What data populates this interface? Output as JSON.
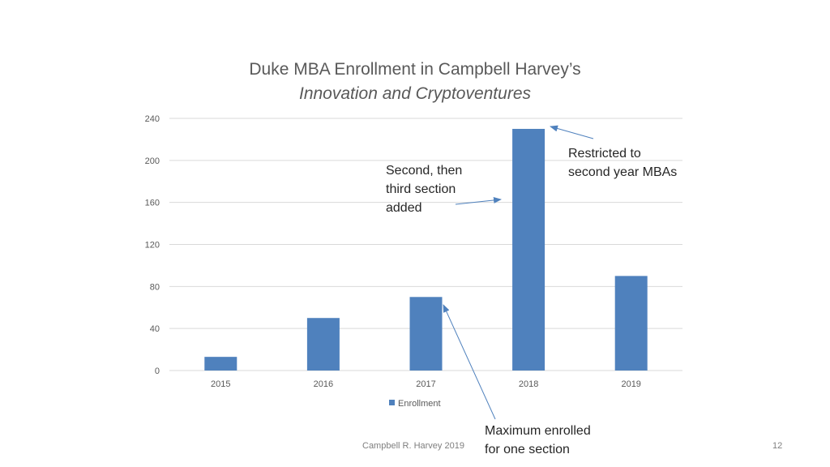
{
  "slide": {
    "title_line1": "Duke MBA Enrollment in Campbell Harvey’s",
    "title_line2": "Innovation and Cryptoventures",
    "footer_text": "Campbell R. Harvey 2019",
    "page_number": "12"
  },
  "annotations": {
    "restricted_line1": "Restricted to",
    "restricted_line2": "second year MBAs",
    "section_line1": "Second, then",
    "section_line2": "third section",
    "section_line3": "added",
    "maximum_line1": "Maximum enrolled",
    "maximum_line2": "for one section"
  },
  "colors": {
    "bar": "#4f81bd",
    "grid": "#d9d9d9",
    "axis_text": "#595959"
  },
  "chart_data": {
    "type": "bar",
    "title": "Duke MBA Enrollment in Campbell Harvey’s Innovation and Cryptoventures",
    "categories": [
      "2015",
      "2016",
      "2017",
      "2018",
      "2019"
    ],
    "series": [
      {
        "name": "Enrollment",
        "values": [
          13,
          50,
          70,
          230,
          90
        ]
      }
    ],
    "ylim": [
      0,
      240
    ],
    "yticks": [
      0,
      40,
      80,
      120,
      160,
      200,
      240
    ],
    "grid": true,
    "legend_position": "bottom"
  }
}
